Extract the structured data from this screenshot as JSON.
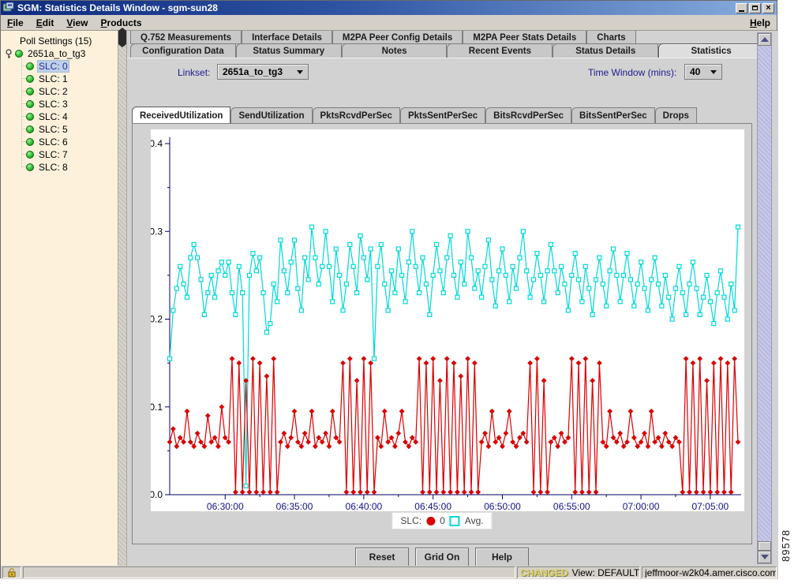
{
  "window": {
    "title": "SGM: Statistics Details Window - sgm-sun28"
  },
  "menu": {
    "items": [
      "File",
      "Edit",
      "View",
      "Products"
    ],
    "help": "Help"
  },
  "tree": {
    "root": "Poll Settings (15)",
    "node": "2651a_to_tg3",
    "children": [
      "SLC: 0",
      "SLC: 1",
      "SLC: 2",
      "SLC: 3",
      "SLC: 4",
      "SLC: 5",
      "SLC: 6",
      "SLC: 7",
      "SLC: 8"
    ],
    "selected": "SLC: 0"
  },
  "tabs_row1": [
    "Q.752 Measurements",
    "Interface Details",
    "M2PA Peer Config Details",
    "M2PA Peer Stats Details",
    "Charts"
  ],
  "tabs_row2": [
    "Configuration Data",
    "Status Summary",
    "Notes",
    "Recent Events",
    "Status Details",
    "Statistics"
  ],
  "controls": {
    "linkset_label": "Linkset:",
    "linkset_value": "2651a_to_tg3",
    "time_window_label": "Time Window (mins):",
    "time_window_value": "40"
  },
  "chart_tabs": [
    "ReceivedUtilization",
    "SendUtilization",
    "PktsRcvdPerSec",
    "PktsSentPerSec",
    "BitsRcvdPerSec",
    "BitsSentPerSec",
    "Drops"
  ],
  "chart_data": {
    "type": "line",
    "title": "",
    "xlabel": "",
    "ylabel": "",
    "ylim": [
      0,
      0.4
    ],
    "y_ticks": [
      0.0,
      0.1,
      0.2,
      0.3,
      0.4
    ],
    "y_minor_step": 0.05,
    "grid": false,
    "axis_color": "#000066",
    "y_label_color": "#000000",
    "x_label_color": "#10108c",
    "x_ticks": [
      {
        "label": "06:30:00",
        "f": 0.0976
      },
      {
        "label": "06:35:00",
        "f": 0.2195
      },
      {
        "label": "06:40:00",
        "f": 0.3415
      },
      {
        "label": "06:45:00",
        "f": 0.4634
      },
      {
        "label": "06:50:00",
        "f": 0.5854
      },
      {
        "label": "06:55:00",
        "f": 0.7073
      },
      {
        "label": "07:00:00",
        "f": 0.8293
      },
      {
        "label": "07:05:00",
        "f": 0.9512
      }
    ],
    "series": [
      {
        "name": "Avg.",
        "color": "#00d8d8",
        "marker": "square",
        "values": [
          0.155,
          0.21,
          0.235,
          0.26,
          0.24,
          0.225,
          0.27,
          0.285,
          0.27,
          0.245,
          0.205,
          0.23,
          0.25,
          0.225,
          0.255,
          0.265,
          0.25,
          0.265,
          0.23,
          0.205,
          0.26,
          0.23,
          0.01,
          0.25,
          0.275,
          0.255,
          0.27,
          0.23,
          0.185,
          0.195,
          0.24,
          0.22,
          0.29,
          0.255,
          0.23,
          0.265,
          0.29,
          0.235,
          0.21,
          0.27,
          0.245,
          0.305,
          0.27,
          0.24,
          0.26,
          0.3,
          0.26,
          0.22,
          0.28,
          0.25,
          0.21,
          0.24,
          0.285,
          0.26,
          0.23,
          0.295,
          0.27,
          0.245,
          0.28,
          0.155,
          0.26,
          0.285,
          0.24,
          0.21,
          0.255,
          0.23,
          0.28,
          0.25,
          0.22,
          0.265,
          0.3,
          0.26,
          0.23,
          0.27,
          0.24,
          0.205,
          0.25,
          0.285,
          0.255,
          0.23,
          0.27,
          0.295,
          0.25,
          0.225,
          0.265,
          0.24,
          0.3,
          0.27,
          0.235,
          0.255,
          0.225,
          0.26,
          0.29,
          0.245,
          0.215,
          0.255,
          0.28,
          0.25,
          0.22,
          0.26,
          0.235,
          0.27,
          0.3,
          0.255,
          0.225,
          0.245,
          0.275,
          0.25,
          0.22,
          0.255,
          0.285,
          0.255,
          0.23,
          0.26,
          0.24,
          0.21,
          0.25,
          0.275,
          0.245,
          0.22,
          0.26,
          0.235,
          0.205,
          0.245,
          0.27,
          0.24,
          0.215,
          0.255,
          0.28,
          0.25,
          0.22,
          0.25,
          0.275,
          0.245,
          0.215,
          0.24,
          0.265,
          0.235,
          0.21,
          0.245,
          0.27,
          0.24,
          0.215,
          0.25,
          0.225,
          0.2,
          0.235,
          0.26,
          0.23,
          0.205,
          0.24,
          0.265,
          0.235,
          0.205,
          0.225,
          0.25,
          0.22,
          0.195,
          0.23,
          0.255,
          0.225,
          0.2,
          0.24,
          0.21,
          0.305
        ]
      },
      {
        "name": "0",
        "color": "#d90000",
        "marker": "diamond",
        "values": [
          0.06,
          0.075,
          0.055,
          0.065,
          0.06,
          0.095,
          0.06,
          0.055,
          0.07,
          0.06,
          0.055,
          0.09,
          0.06,
          0.065,
          0.055,
          0.1,
          0.065,
          0.06,
          0.155,
          0.003,
          0.15,
          0.003,
          0.13,
          0.003,
          0.155,
          0.003,
          0.15,
          0.003,
          0.135,
          0.003,
          0.155,
          0.003,
          0.06,
          0.07,
          0.055,
          0.065,
          0.095,
          0.06,
          0.055,
          0.07,
          0.06,
          0.095,
          0.055,
          0.065,
          0.06,
          0.07,
          0.055,
          0.095,
          0.065,
          0.06,
          0.15,
          0.003,
          0.155,
          0.003,
          0.13,
          0.003,
          0.155,
          0.003,
          0.15,
          0.003,
          0.065,
          0.055,
          0.095,
          0.06,
          0.065,
          0.055,
          0.07,
          0.095,
          0.06,
          0.055,
          0.065,
          0.06,
          0.155,
          0.003,
          0.15,
          0.003,
          0.155,
          0.003,
          0.13,
          0.003,
          0.155,
          0.003,
          0.15,
          0.003,
          0.135,
          0.003,
          0.155,
          0.003,
          0.15,
          0.003,
          0.06,
          0.07,
          0.055,
          0.095,
          0.06,
          0.065,
          0.055,
          0.07,
          0.095,
          0.06,
          0.055,
          0.065,
          0.07,
          0.06,
          0.15,
          0.003,
          0.155,
          0.003,
          0.13,
          0.003,
          0.06,
          0.065,
          0.055,
          0.07,
          0.06,
          0.065,
          0.155,
          0.003,
          0.15,
          0.003,
          0.155,
          0.003,
          0.13,
          0.003,
          0.15,
          0.06,
          0.055,
          0.095,
          0.065,
          0.06,
          0.07,
          0.055,
          0.06,
          0.095,
          0.065,
          0.055,
          0.06,
          0.07,
          0.055,
          0.095,
          0.06,
          0.065,
          0.055,
          0.07,
          0.06,
          0.055,
          0.065,
          0.06,
          0.003,
          0.155,
          0.003,
          0.15,
          0.003,
          0.155,
          0.003,
          0.13,
          0.003,
          0.15,
          0.003,
          0.155,
          0.003,
          0.15,
          0.003,
          0.155,
          0.06
        ]
      }
    ]
  },
  "legend": {
    "label": "SLC:",
    "slc": "0",
    "avg": "Avg."
  },
  "buttons": {
    "reset": "Reset",
    "grid": "Grid On",
    "help": "Help"
  },
  "statusbar": {
    "changed": "CHANGED",
    "view": "View: DEFAULT",
    "host": "jeffmoor-w2k04.amer.cisco.com"
  },
  "figure_number": "89578"
}
